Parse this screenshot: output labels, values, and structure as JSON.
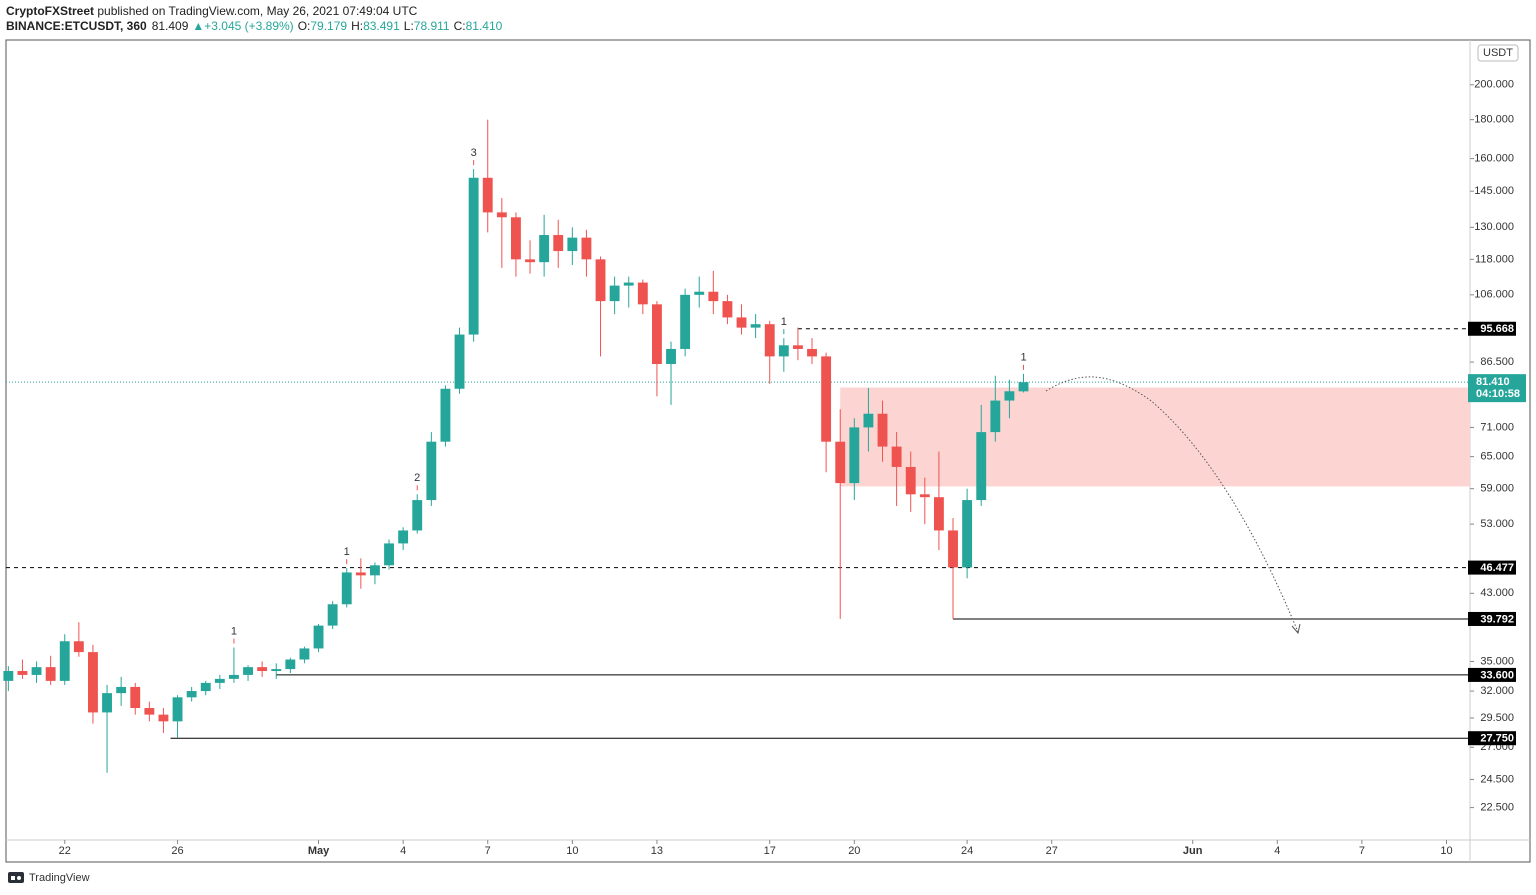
{
  "header": {
    "author": "CryptoFXStreet",
    "published": " published on TradingView.com, May 26, 2021 07:49:04 UTC",
    "symbol": "BINANCE:ETCUSDT, 360",
    "price": "81.409",
    "change": "▲+3.045 (+3.89%)",
    "o_label": "O:",
    "o": "79.179",
    "h_label": "H:",
    "h": "83.491",
    "l_label": "L:",
    "l": "78.911",
    "c_label": "C:",
    "c": "81.410"
  },
  "footer": "TradingView",
  "chart_data": {
    "type": "candlestick",
    "log_scale": true,
    "grid": false,
    "axis_unit": "USDT",
    "up_color": "#26a69a",
    "down_color": "#ef5350",
    "x": [
      "2021-04-20T00:00",
      "2021-04-20T12:00",
      "2021-04-21T00:00",
      "2021-04-21T12:00",
      "2021-04-22T00:00",
      "2021-04-22T12:00",
      "2021-04-23T00:00",
      "2021-04-23T12:00",
      "2021-04-24T00:00",
      "2021-04-24T12:00",
      "2021-04-25T00:00",
      "2021-04-25T12:00",
      "2021-04-26T00:00",
      "2021-04-26T12:00",
      "2021-04-27T00:00",
      "2021-04-27T12:00",
      "2021-04-28T00:00",
      "2021-04-28T12:00",
      "2021-04-29T00:00",
      "2021-04-29T12:00",
      "2021-04-30T00:00",
      "2021-04-30T12:00",
      "2021-05-01T00:00",
      "2021-05-01T12:00",
      "2021-05-02T00:00",
      "2021-05-02T12:00",
      "2021-05-03T00:00",
      "2021-05-03T12:00",
      "2021-05-04T00:00",
      "2021-05-04T12:00",
      "2021-05-05T00:00",
      "2021-05-05T12:00",
      "2021-05-06T00:00",
      "2021-05-06T12:00",
      "2021-05-07T00:00",
      "2021-05-07T12:00",
      "2021-05-08T00:00",
      "2021-05-08T12:00",
      "2021-05-09T00:00",
      "2021-05-09T12:00",
      "2021-05-10T00:00",
      "2021-05-10T12:00",
      "2021-05-11T00:00",
      "2021-05-11T12:00",
      "2021-05-12T00:00",
      "2021-05-12T12:00",
      "2021-05-13T00:00",
      "2021-05-13T12:00",
      "2021-05-14T00:00",
      "2021-05-14T12:00",
      "2021-05-15T00:00",
      "2021-05-15T12:00",
      "2021-05-16T00:00",
      "2021-05-16T12:00",
      "2021-05-17T00:00",
      "2021-05-17T12:00",
      "2021-05-18T00:00",
      "2021-05-18T12:00",
      "2021-05-19T00:00",
      "2021-05-19T12:00",
      "2021-05-20T00:00",
      "2021-05-20T12:00",
      "2021-05-21T00:00",
      "2021-05-21T12:00",
      "2021-05-22T00:00",
      "2021-05-22T12:00",
      "2021-05-23T00:00",
      "2021-05-23T12:00",
      "2021-05-24T00:00",
      "2021-05-24T12:00",
      "2021-05-25T00:00",
      "2021-05-25T12:00",
      "2021-05-26T00:00"
    ],
    "open": [
      33.0,
      34.0,
      33.6,
      34.4,
      33.0,
      37.2,
      36.0,
      30.0,
      31.8,
      32.4,
      30.4,
      29.8,
      29.2,
      31.4,
      32.0,
      32.8,
      33.2,
      33.6,
      34.4,
      34.0,
      34.2,
      35.2,
      36.4,
      39.0,
      41.6,
      45.8,
      45.4,
      46.8,
      50.0,
      52.0,
      57.0,
      68.0,
      79.8,
      94.0,
      151.0,
      136.0,
      134.0,
      118.0,
      117.0,
      127.0,
      121.0,
      126.0,
      118.0,
      104.0,
      109.0,
      110.0,
      103.0,
      86.0,
      90.0,
      106.0,
      107.0,
      104.0,
      99.0,
      96.0,
      97.0,
      88.0,
      91.0,
      90.0,
      88.0,
      68.0,
      60.0,
      71.0,
      74.0,
      67.0,
      63.0,
      58.0,
      57.5,
      52.0,
      46.5,
      57.0,
      70.0,
      77.0,
      79.179
    ],
    "high": [
      34.5,
      35.2,
      35.0,
      35.6,
      38.0,
      39.4,
      36.8,
      32.6,
      33.4,
      32.8,
      31.0,
      30.4,
      31.6,
      32.4,
      33.0,
      33.6,
      36.5,
      34.6,
      35.0,
      34.8,
      35.4,
      36.6,
      39.2,
      42.0,
      46.4,
      47.8,
      47.2,
      50.6,
      52.5,
      58.0,
      70.0,
      80.6,
      96.0,
      155.0,
      180.0,
      142.0,
      136.0,
      125.0,
      135.0,
      133.0,
      130.0,
      129.0,
      119.0,
      112.0,
      112.0,
      111.0,
      104.0,
      92.0,
      108.0,
      112.0,
      114.0,
      106.0,
      103.0,
      100.0,
      98.0,
      93.0,
      96.0,
      93.0,
      89.0,
      75.0,
      73.0,
      80.0,
      77.0,
      70.0,
      66.0,
      61.0,
      66.0,
      54.0,
      59.0,
      76.0,
      83.0,
      82.0,
      83.491
    ],
    "low": [
      32.0,
      33.2,
      32.8,
      32.6,
      32.6,
      35.5,
      29.0,
      25.0,
      30.6,
      29.8,
      29.2,
      28.2,
      27.8,
      31.0,
      31.6,
      32.2,
      32.8,
      33.0,
      33.4,
      33.2,
      33.8,
      34.8,
      36.0,
      38.6,
      41.2,
      43.6,
      44.2,
      46.2,
      49.0,
      51.5,
      56.0,
      67.0,
      78.6,
      92.0,
      128.0,
      115.0,
      112.0,
      113.0,
      112.0,
      115.0,
      116.0,
      112.0,
      88.0,
      100.0,
      102.0,
      100.0,
      78.0,
      76.0,
      88.0,
      102.0,
      100.0,
      97.0,
      94.0,
      93.0,
      81.0,
      84.0,
      87.0,
      86.0,
      62.0,
      39.8,
      57.0,
      66.0,
      64.0,
      56.0,
      55.0,
      53.0,
      49.0,
      39.792,
      45.0,
      56.0,
      68.0,
      73.0,
      78.911
    ],
    "close": [
      34.0,
      33.6,
      34.4,
      33.0,
      37.2,
      36.0,
      30.0,
      31.8,
      32.4,
      30.4,
      29.8,
      29.2,
      31.4,
      32.0,
      32.8,
      33.2,
      33.6,
      34.4,
      34.0,
      34.2,
      35.2,
      36.4,
      39.0,
      41.6,
      45.8,
      45.4,
      46.8,
      50.0,
      52.0,
      57.0,
      68.0,
      79.8,
      94.0,
      151.0,
      136.0,
      134.0,
      118.0,
      117.0,
      127.0,
      121.0,
      126.0,
      118.0,
      104.0,
      109.0,
      110.0,
      103.0,
      86.0,
      90.0,
      106.0,
      107.0,
      104.0,
      99.0,
      96.0,
      97.0,
      88.0,
      91.0,
      90.0,
      88.0,
      68.0,
      60.0,
      71.0,
      74.0,
      67.0,
      63.0,
      58.0,
      57.5,
      52.0,
      46.5,
      57.0,
      70.0,
      77.0,
      79.2,
      81.41
    ],
    "xlim": [
      "2021-04-19T22:00",
      "2021-06-10T20:00"
    ],
    "xticks": [
      {
        "value": "2021-04-22T00:00",
        "label": "22"
      },
      {
        "value": "2021-04-26T00:00",
        "label": "26"
      },
      {
        "value": "2021-05-01T00:00",
        "label": "May"
      },
      {
        "value": "2021-05-04T00:00",
        "label": "4"
      },
      {
        "value": "2021-05-07T00:00",
        "label": "7"
      },
      {
        "value": "2021-05-10T00:00",
        "label": "10"
      },
      {
        "value": "2021-05-13T00:00",
        "label": "13"
      },
      {
        "value": "2021-05-17T00:00",
        "label": "17"
      },
      {
        "value": "2021-05-20T00:00",
        "label": "20"
      },
      {
        "value": "2021-05-24T00:00",
        "label": "24"
      },
      {
        "value": "2021-05-27T00:00",
        "label": "27"
      },
      {
        "value": "2021-06-01T00:00",
        "label": "Jun"
      },
      {
        "value": "2021-06-04T00:00",
        "label": "4"
      },
      {
        "value": "2021-06-07T00:00",
        "label": "7"
      },
      {
        "value": "2021-06-10T00:00",
        "label": "10"
      }
    ],
    "ylim": [
      20.4,
      229
    ],
    "yticks": [
      {
        "value": 200,
        "label": "200.000"
      },
      {
        "value": 180,
        "label": "180.000"
      },
      {
        "value": 160,
        "label": "160.000"
      },
      {
        "value": 145,
        "label": "145.000"
      },
      {
        "value": 130,
        "label": "130.000"
      },
      {
        "value": 118,
        "label": "118.000"
      },
      {
        "value": 106,
        "label": "106.000"
      },
      {
        "value": 86.5,
        "label": "86.500"
      },
      {
        "value": 71,
        "label": "71.000"
      },
      {
        "value": 65,
        "label": "65.000"
      },
      {
        "value": 59,
        "label": "59.000"
      },
      {
        "value": 53,
        "label": "53.000"
      },
      {
        "value": 43,
        "label": "43.000"
      },
      {
        "value": 35,
        "label": "35.000"
      },
      {
        "value": 32,
        "label": "32.000"
      },
      {
        "value": 29.5,
        "label": "29.500"
      },
      {
        "value": 27,
        "label": "27.000"
      },
      {
        "value": 24.5,
        "label": "24.500"
      },
      {
        "value": 22.5,
        "label": "22.500"
      }
    ],
    "levels": [
      {
        "value": 95.668,
        "label": "95.668",
        "style": "dashed",
        "from": "2021-05-18T00:00"
      },
      {
        "value": 46.477,
        "label": "46.477",
        "style": "dashed"
      },
      {
        "value": 39.792,
        "label": "39.792",
        "style": "solid",
        "from": "2021-05-23T12:00"
      },
      {
        "value": 33.6,
        "label": "33.600",
        "style": "solid",
        "from": "2021-04-29T12:00"
      },
      {
        "value": 27.75,
        "label": "27.750",
        "style": "solid",
        "from": "2021-04-25T18:00"
      }
    ],
    "zone": {
      "low": 59.4,
      "high": 80.1,
      "from": "2021-05-19T12:00",
      "color": "#fcd5d3"
    },
    "annotations": [
      {
        "text": "1",
        "x": "2021-04-28T00:00",
        "color": "#ef5350"
      },
      {
        "text": "1",
        "x": "2021-05-02T00:00",
        "color": "#ef5350"
      },
      {
        "text": "2",
        "x": "2021-05-04T12:00",
        "color": "#ef5350"
      },
      {
        "text": "3",
        "x": "2021-05-06T12:00",
        "color": "#ef5350"
      },
      {
        "text": "1",
        "x": "2021-05-17T12:00",
        "color": "#26a69a"
      },
      {
        "text": "1",
        "x": "2021-05-26T00:00",
        "color": "#ef5350"
      }
    ],
    "last_price": {
      "value": 81.41,
      "label": "81.410",
      "countdown": "04:10:58",
      "color": "#26a69a"
    }
  }
}
